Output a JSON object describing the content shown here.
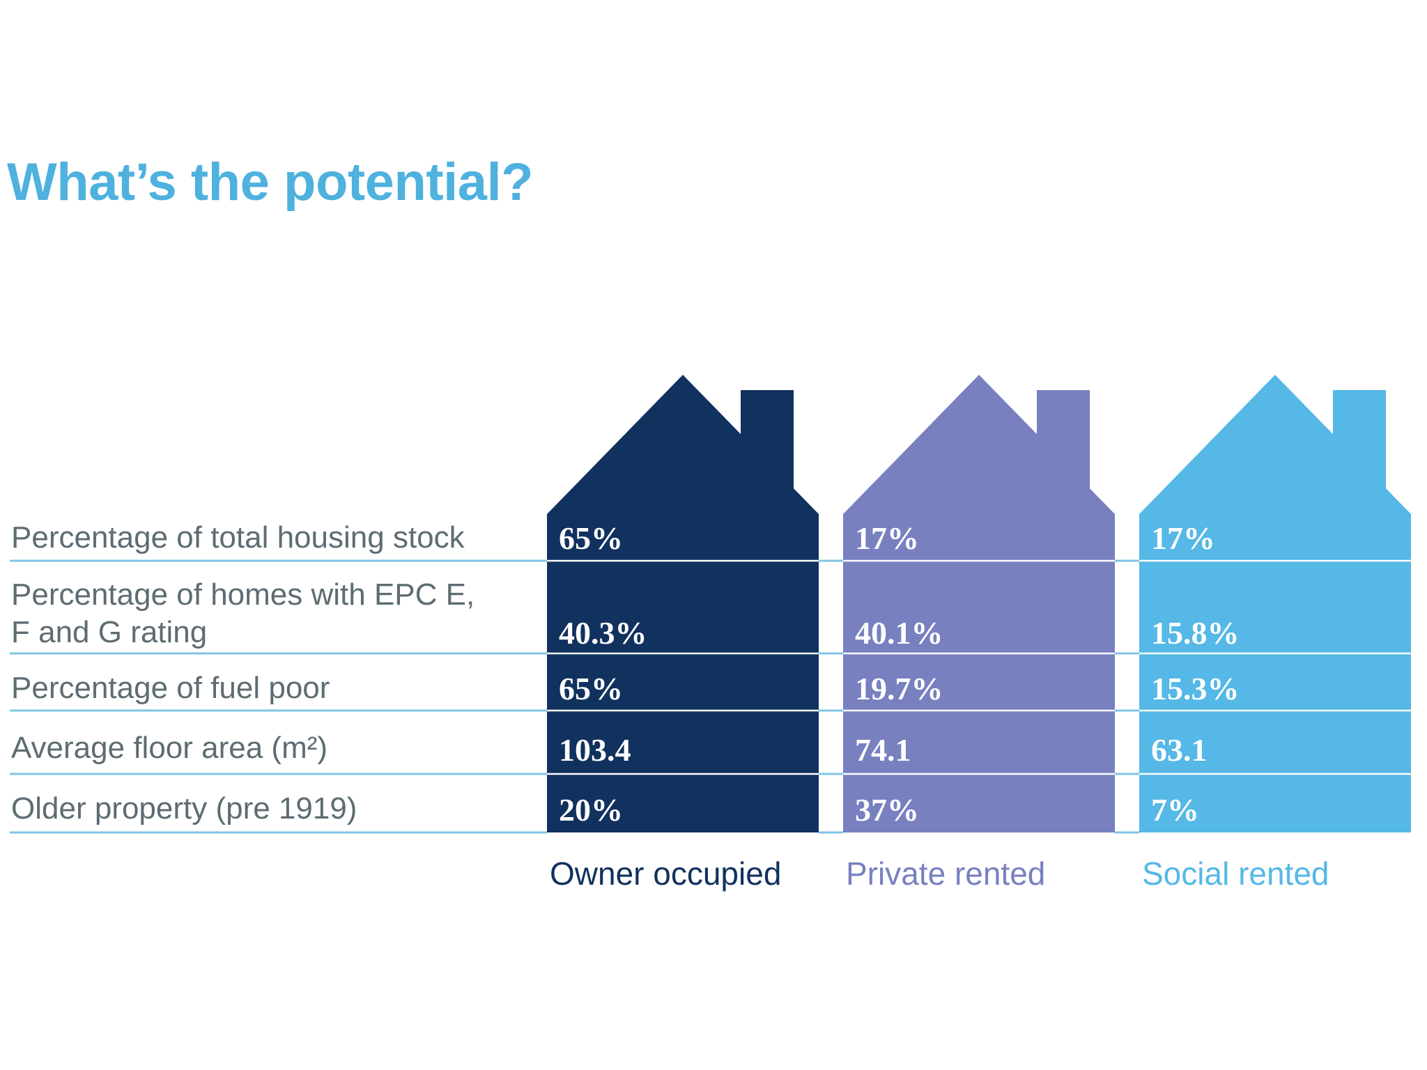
{
  "title": "What’s the potential?",
  "colors": {
    "title": "#4eb1de",
    "label_text": "#5d6c72",
    "rule": "#7fc4e6",
    "divider": "#ffffff"
  },
  "chart_data": {
    "type": "table",
    "rows": [
      {
        "label_lines": [
          "Percentage of total housing stock"
        ]
      },
      {
        "label_lines": [
          "Percentage of homes with EPC E,",
          "F and G rating"
        ]
      },
      {
        "label_lines": [
          "Percentage of fuel poor"
        ]
      },
      {
        "label_lines": [
          "Average floor area (m²)"
        ]
      },
      {
        "label_lines": [
          "Older property (pre 1919)"
        ]
      }
    ],
    "columns": [
      {
        "name": "Owner occupied",
        "color": "#11315f",
        "label_color": "#11315f",
        "icon": "house-icon",
        "values": [
          "65%",
          "40.3%",
          "65%",
          "103.4",
          "20%"
        ]
      },
      {
        "name": "Private rented",
        "color": "#7880c0",
        "label_color": "#7880c0",
        "icon": "house-icon",
        "values": [
          "17%",
          "40.1%",
          "19.7%",
          "74.1",
          "37%"
        ]
      },
      {
        "name": "Social rented",
        "color": "#55b8e6",
        "label_color": "#55b8e6",
        "icon": "house-icon",
        "values": [
          "17%",
          "15.8%",
          "15.3%",
          "63.1",
          "7%"
        ]
      }
    ]
  }
}
